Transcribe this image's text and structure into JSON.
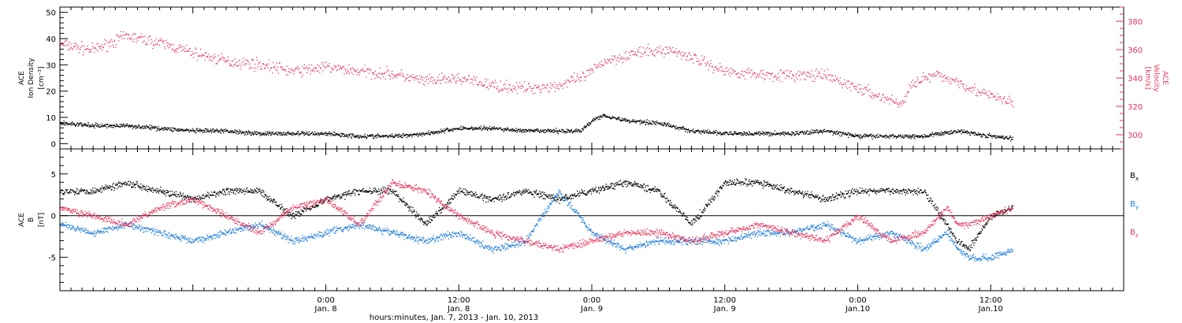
{
  "xaxis": {
    "title": "hours:minutes, Jan.  7, 2013 - Jan. 10, 2013",
    "start_hour": 0,
    "end_hour": 96,
    "ticks": [
      {
        "hour": 24,
        "time": "0:00",
        "date": "Jan. 8"
      },
      {
        "hour": 36,
        "time": "12:00",
        "date": "Jan. 8"
      },
      {
        "hour": 48,
        "time": "0:00",
        "date": "Jan. 9"
      },
      {
        "hour": 60,
        "time": "12:00",
        "date": "Jan. 9"
      },
      {
        "hour": 72,
        "time": "0:00",
        "date": "Jan.10"
      },
      {
        "hour": 84,
        "time": "12:00",
        "date": "Jan.10"
      }
    ]
  },
  "top_panel": {
    "left_label": [
      "ACE",
      "Ion Density",
      "[cm⁻³]"
    ],
    "right_label": [
      "ACE",
      "Velocity",
      "[km/s]"
    ],
    "left_axis": {
      "min": -2,
      "max": 52,
      "ticks": [
        0,
        10,
        20,
        30,
        40,
        50
      ]
    },
    "right_axis": {
      "min": 290,
      "max": 390,
      "ticks": [
        300,
        320,
        340,
        360,
        380
      ]
    },
    "colors": {
      "density": "#000000",
      "velocity": "#e8345a"
    }
  },
  "bottom_panel": {
    "left_label": [
      "ACE",
      "B",
      "[nT]"
    ],
    "axis": {
      "min": -9,
      "max": 8,
      "ticks": [
        -5,
        0,
        5
      ]
    },
    "legend": [
      {
        "label": "B",
        "sub": "x",
        "color": "#000000"
      },
      {
        "label": "B",
        "sub": "y",
        "color": "#1a7ad8"
      },
      {
        "label": "B",
        "sub": "z",
        "color": "#e8345a"
      }
    ]
  },
  "chart_data": {
    "type": "scatter",
    "x_unit": "hours since 2013-01-07 00:00 UT",
    "panels": [
      {
        "name": "plasma",
        "series": [
          {
            "name": "Ion Density",
            "axis": "left",
            "unit": "cm^-3",
            "x": [
              0,
              3,
              6,
              9,
              12,
              15,
              18,
              21,
              24,
              27,
              30,
              33,
              36,
              39,
              42,
              45,
              47,
              48,
              49,
              51,
              54,
              57,
              60,
              63,
              66,
              69,
              72,
              75,
              78,
              81,
              84,
              86
            ],
            "y": [
              8,
              7,
              7,
              6,
              5,
              5,
              4,
              4,
              4,
              3,
              3,
              4,
              6,
              6,
              5,
              5,
              5,
              9,
              11,
              9,
              8,
              5,
              4,
              4,
              4,
              5,
              3,
              3,
              3,
              5,
              3,
              2
            ]
          },
          {
            "name": "Velocity",
            "axis": "right",
            "unit": "km/s",
            "x": [
              0,
              3,
              6,
              9,
              12,
              15,
              18,
              21,
              24,
              27,
              30,
              33,
              36,
              39,
              42,
              45,
              46,
              47,
              48,
              49,
              52,
              55,
              57,
              60,
              63,
              66,
              69,
              72,
              74,
              76,
              77,
              79,
              81,
              83,
              85,
              86
            ],
            "y": [
              364,
              360,
              370,
              365,
              358,
              352,
              350,
              345,
              348,
              345,
              343,
              338,
              340,
              335,
              333,
              335,
              338,
              340,
              345,
              352,
              358,
              360,
              355,
              345,
              343,
              342,
              342,
              333,
              327,
              322,
              338,
              342,
              338,
              330,
              325,
              322
            ]
          }
        ]
      },
      {
        "name": "magnetic_field",
        "series": [
          {
            "name": "Bx",
            "unit": "nT",
            "x": [
              0,
              3,
              6,
              9,
              12,
              15,
              18,
              21,
              24,
              27,
              30,
              33,
              36,
              39,
              42,
              45,
              48,
              51,
              54,
              57,
              60,
              63,
              66,
              69,
              72,
              75,
              78,
              80,
              81,
              82,
              84,
              86
            ],
            "y": [
              3,
              3,
              4,
              3,
              2,
              3,
              3,
              0,
              2,
              3,
              3,
              -1,
              3,
              2,
              3,
              2,
              3,
              4,
              3,
              -1,
              4,
              4,
              3,
              2,
              3,
              3,
              3,
              -1,
              -3,
              -4,
              0,
              1
            ]
          },
          {
            "name": "By",
            "unit": "nT",
            "x": [
              0,
              3,
              6,
              9,
              12,
              15,
              18,
              21,
              24,
              27,
              30,
              33,
              36,
              39,
              42,
              45,
              48,
              51,
              54,
              57,
              60,
              63,
              66,
              69,
              72,
              75,
              78,
              80,
              81,
              82,
              84,
              86
            ],
            "y": [
              -1,
              -2,
              -1,
              -2,
              -3,
              -2,
              -1,
              -3,
              -2,
              -1,
              -2,
              -3,
              -2,
              -4,
              -3,
              3,
              -2,
              -4,
              -3,
              -3,
              -3,
              -2,
              -2,
              -1,
              -3,
              -2,
              -4,
              -2,
              -4,
              -5,
              -5,
              -4
            ]
          },
          {
            "name": "Bz",
            "unit": "nT",
            "x": [
              0,
              3,
              6,
              9,
              12,
              15,
              18,
              21,
              24,
              27,
              30,
              33,
              36,
              39,
              42,
              45,
              48,
              51,
              54,
              57,
              60,
              63,
              66,
              69,
              72,
              75,
              78,
              80,
              81,
              82,
              84,
              86
            ],
            "y": [
              1,
              0,
              -1,
              1,
              2,
              0,
              -2,
              1,
              2,
              -1,
              4,
              3,
              0,
              -2,
              -3,
              -4,
              -3,
              -2,
              -2,
              -3,
              -2,
              -1,
              -2,
              -3,
              0,
              -3,
              -2,
              1,
              -1,
              -1,
              0,
              1
            ]
          }
        ]
      }
    ]
  }
}
